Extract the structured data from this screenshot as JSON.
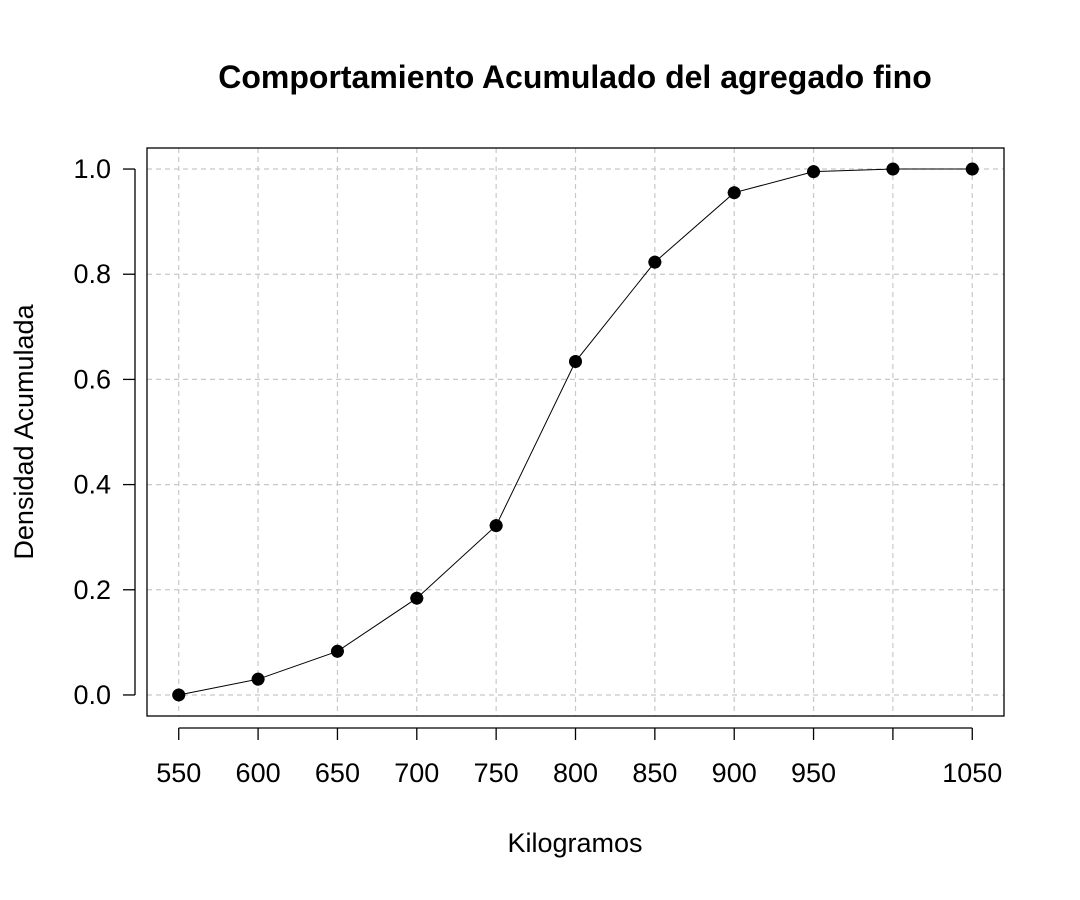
{
  "chart_data": {
    "type": "line",
    "title": "Comportamiento Acumulado del agregado fino",
    "xlabel": "Kilogramos",
    "ylabel": "Densidad Acumulada",
    "x": [
      550,
      600,
      650,
      700,
      750,
      800,
      850,
      900,
      950,
      1000,
      1050
    ],
    "series": [
      {
        "values": [
          0.0,
          0.03,
          0.083,
          0.184,
          0.322,
          0.634,
          0.823,
          0.955,
          0.995,
          1.0,
          1.0
        ]
      }
    ],
    "xlim": [
      530,
      1070
    ],
    "ylim": [
      -0.04,
      1.04
    ],
    "x_ticks": [
      550,
      600,
      650,
      700,
      750,
      800,
      850,
      900,
      950,
      1000,
      1050
    ],
    "x_tick_labels": [
      "550",
      "600",
      "650",
      "700",
      "750",
      "800",
      "850",
      "900",
      "950",
      "",
      "1050"
    ],
    "y_ticks": [
      0.0,
      0.2,
      0.4,
      0.6,
      0.8,
      1.0
    ],
    "y_tick_labels": [
      "0.0",
      "0.2",
      "0.4",
      "0.6",
      "0.8",
      "1.0"
    ],
    "grid": true,
    "marker": "filled-circle-with-cross",
    "colors": {
      "series": "#000000",
      "grid": "#c8c8c8",
      "axis": "#000000"
    }
  }
}
